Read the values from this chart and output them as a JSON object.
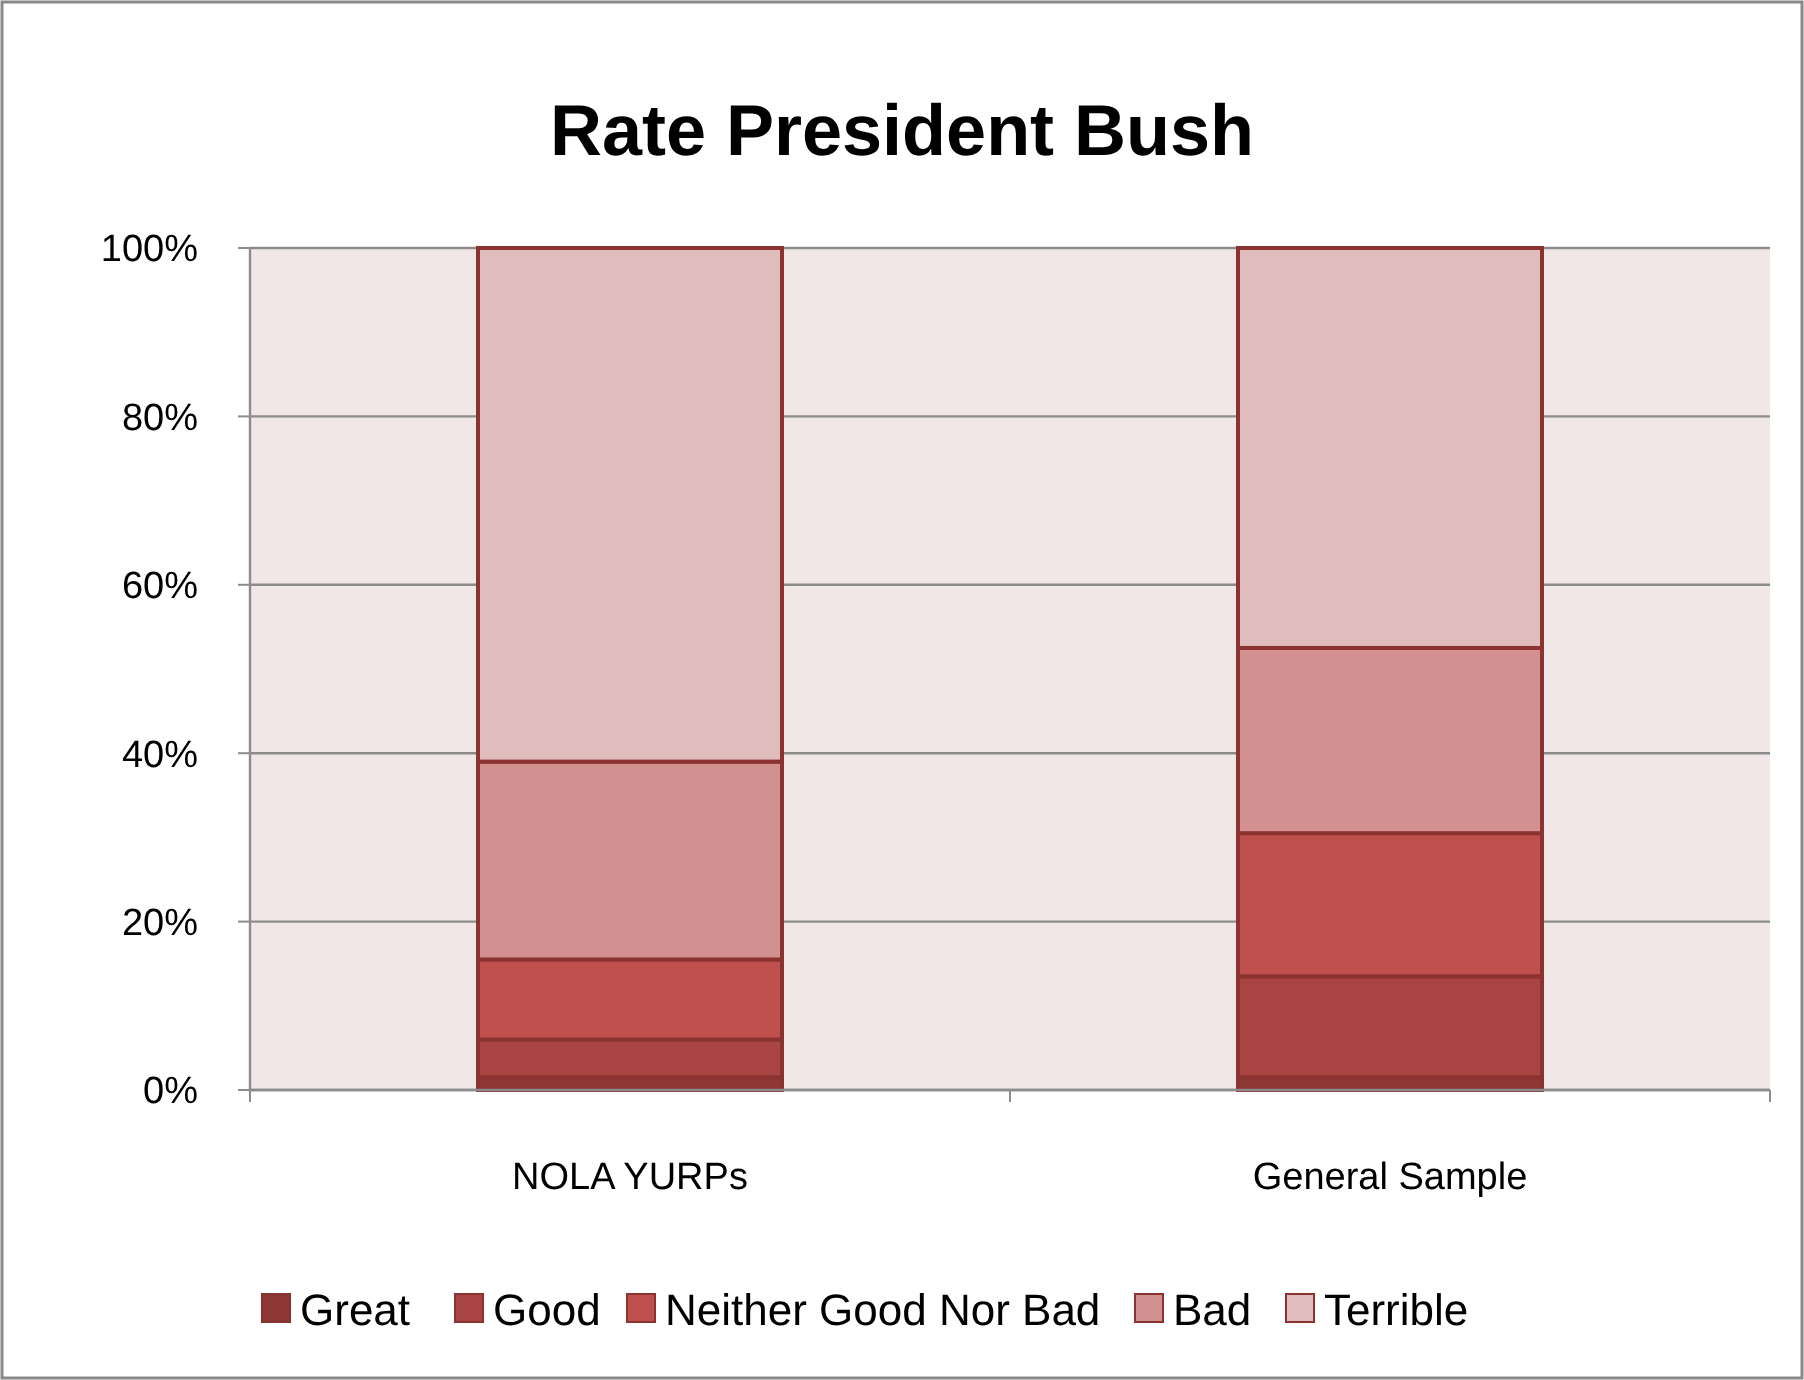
{
  "chart_data": {
    "type": "bar",
    "title": "Rate President Bush",
    "categories": [
      "NOLA YURPs",
      "General Sample"
    ],
    "stacked": true,
    "series": [
      {
        "name": "Great",
        "color": "#8e3836",
        "values": [
          1.5,
          1.5
        ]
      },
      {
        "name": "Good",
        "color": "#a84442",
        "values": [
          4.5,
          12
        ]
      },
      {
        "name": "Neither Good Nor Bad",
        "color": "#c0504d",
        "values": [
          9.5,
          17
        ]
      },
      {
        "name": "Bad",
        "color": "#d39090",
        "values": [
          23.5,
          22
        ]
      },
      {
        "name": "Terrible",
        "color": "#e1bcbc",
        "values": [
          61,
          47.5
        ]
      }
    ],
    "ylim": [
      0,
      100
    ],
    "yticks": [
      {
        "value": 0,
        "label": "0%"
      },
      {
        "value": 20,
        "label": "20%"
      },
      {
        "value": 40,
        "label": "40%"
      },
      {
        "value": 60,
        "label": "60%"
      },
      {
        "value": 80,
        "label": "80%"
      },
      {
        "value": 100,
        "label": "100%"
      }
    ],
    "grid": "y",
    "legend": "bottom"
  }
}
